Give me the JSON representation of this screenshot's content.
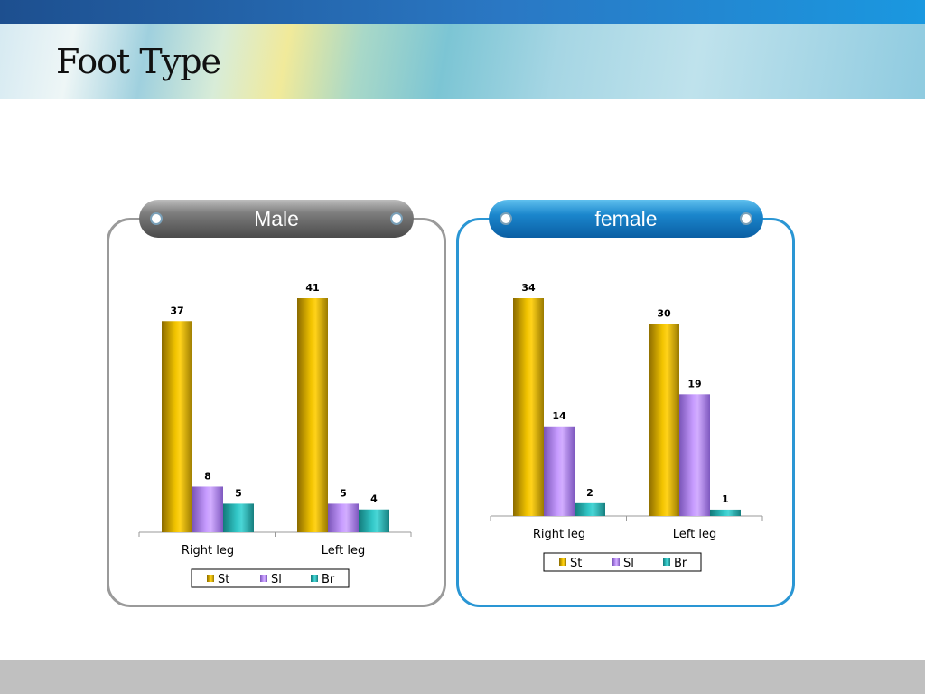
{
  "slide": {
    "title": "Foot Type"
  },
  "panels": {
    "male": {
      "label": "Male"
    },
    "female": {
      "label": "female"
    }
  },
  "colors": {
    "St": "#d9ad00",
    "Sl": "#a67de6",
    "Br": "#1fa6a6",
    "male_border": "#9a9a9a",
    "female_border": "#2a96d4"
  },
  "chart_data": [
    {
      "type": "bar",
      "title": "Male",
      "categories": [
        "Right leg",
        "Left leg"
      ],
      "series": [
        {
          "name": "St",
          "values": [
            37,
            41
          ]
        },
        {
          "name": "Sl",
          "values": [
            8,
            5
          ]
        },
        {
          "name": "Br",
          "values": [
            5,
            4
          ]
        }
      ],
      "ylim": [
        0,
        41
      ],
      "legend": "bottom",
      "grid": false
    },
    {
      "type": "bar",
      "title": "female",
      "categories": [
        "Right leg",
        "Left leg"
      ],
      "series": [
        {
          "name": "St",
          "values": [
            34,
            30
          ]
        },
        {
          "name": "Sl",
          "values": [
            14,
            19
          ]
        },
        {
          "name": "Br",
          "values": [
            2,
            1
          ]
        }
      ],
      "ylim": [
        0,
        34
      ],
      "legend": "bottom",
      "grid": false
    }
  ]
}
